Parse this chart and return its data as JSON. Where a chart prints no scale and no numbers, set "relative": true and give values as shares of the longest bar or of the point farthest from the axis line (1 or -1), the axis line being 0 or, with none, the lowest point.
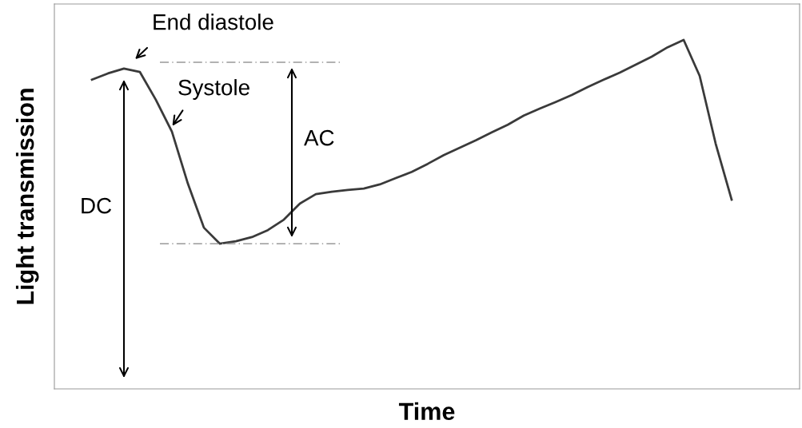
{
  "chart_data": {
    "type": "line",
    "relative": true,
    "xlabel": "Time",
    "ylabel": "Light transmission",
    "categories": [
      null,
      null,
      null,
      null,
      null,
      null,
      null,
      null,
      null,
      null,
      null,
      null,
      null,
      null,
      null,
      null,
      null,
      null,
      null,
      null,
      null,
      null,
      null,
      null,
      null,
      null,
      null,
      null,
      null,
      null,
      null,
      null,
      null,
      null,
      null,
      null,
      null,
      null,
      null,
      null,
      null
    ],
    "series": [
      {
        "color": "#3a3a3a",
        "values": [
          0.886,
          0.904,
          0.918,
          0.908,
          0.828,
          0.737,
          0.588,
          0.462,
          0.416,
          0.423,
          0.435,
          0.455,
          0.485,
          0.531,
          0.558,
          0.565,
          0.57,
          0.574,
          0.586,
          0.604,
          0.622,
          0.645,
          0.67,
          0.691,
          0.712,
          0.735,
          0.757,
          0.783,
          0.803,
          0.822,
          0.842,
          0.865,
          0.886,
          0.906,
          0.929,
          0.952,
          0.979,
          1.0,
          0.897,
          0.703,
          0.542
        ]
      }
    ],
    "ref_lines": [
      {
        "axis": "y",
        "value": 0.936,
        "color": "#999999",
        "line_style": "dashed"
      },
      {
        "axis": "y",
        "value": 0.416,
        "color": "#999999",
        "line_style": "dashed"
      }
    ],
    "annotations": [
      "End diastole",
      "Systole",
      "AC",
      "DC"
    ],
    "tick_labels": false
  }
}
